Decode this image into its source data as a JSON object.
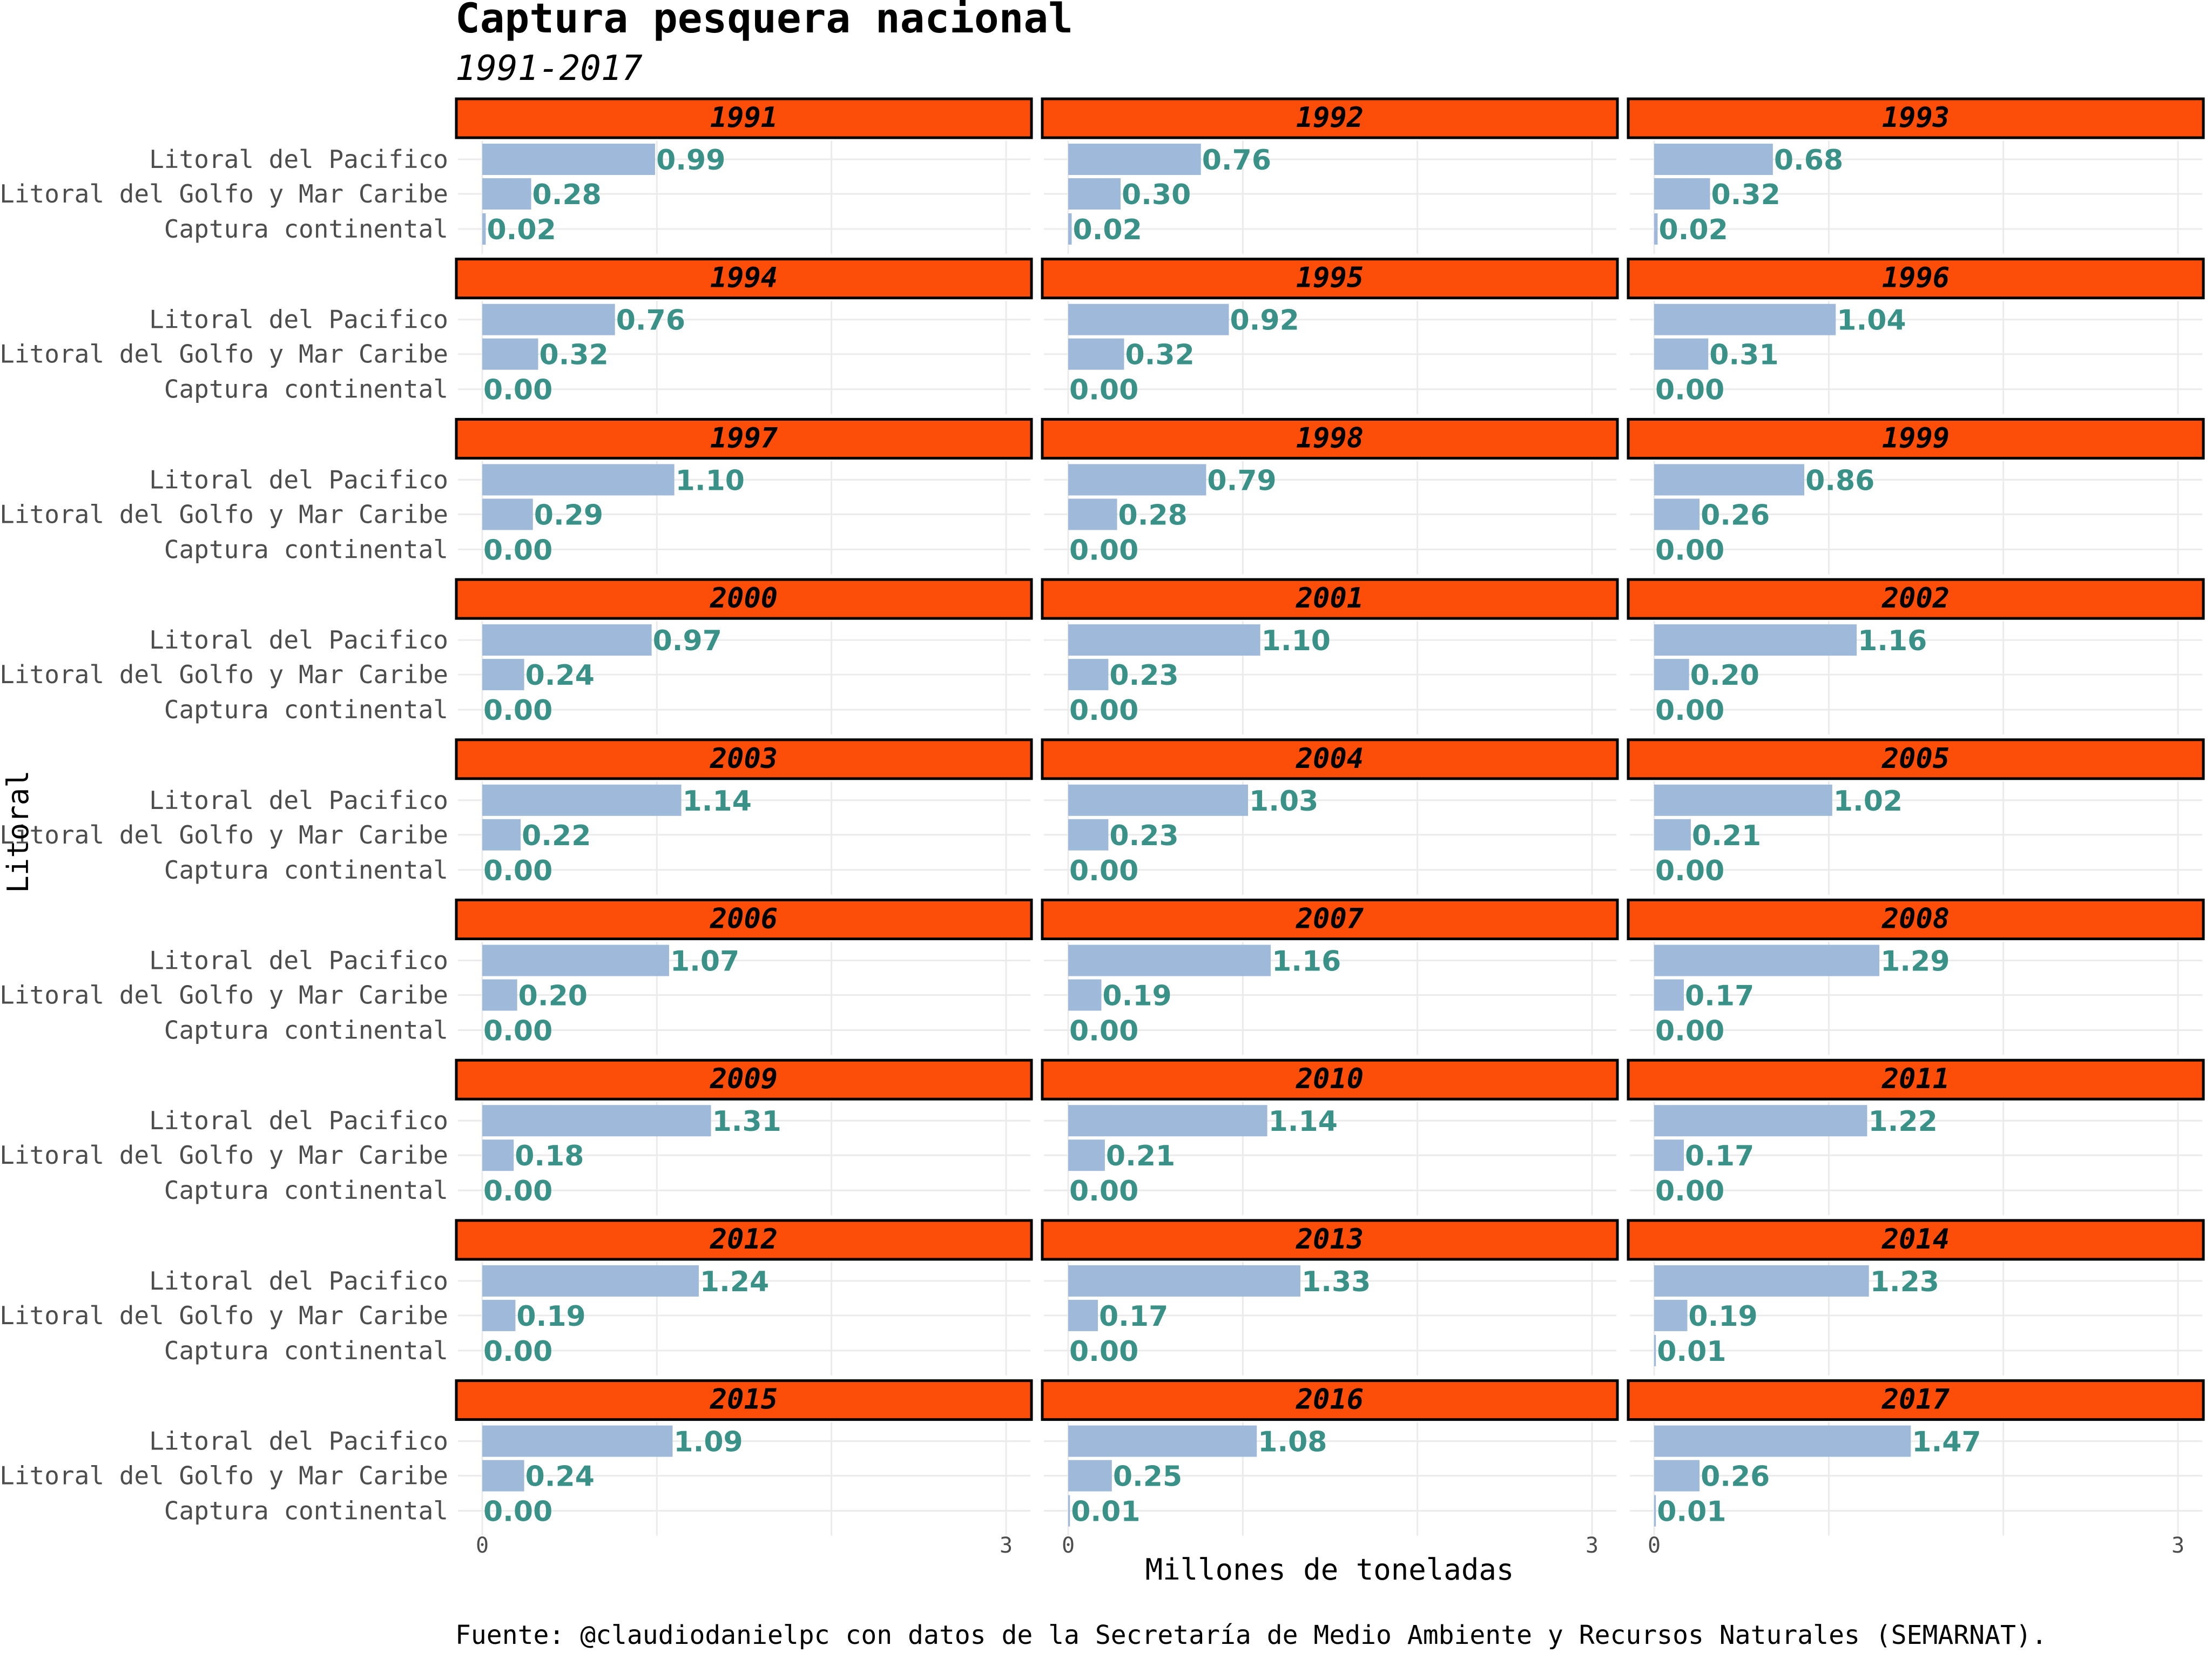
{
  "chart_data": {
    "type": "bar",
    "orientation": "horizontal",
    "title": "Captura pesquera nacional",
    "subtitle": "1991-2017",
    "xlabel": "Millones de toneladas",
    "ylabel": "Litoral",
    "caption": "Fuente: @claudiodanielpc con datos de la Secretaría de Medio Ambiente y Recursos Naturales (SEMARNAT).",
    "categories": [
      "Litoral del Pacifico",
      "Litoral del Golfo y Mar Caribe",
      "Captura continental"
    ],
    "xlim": [
      0,
      3
    ],
    "x_ticks": [
      "0",
      "3"
    ],
    "grid": true,
    "legend": "none",
    "colors": {
      "bar": "#9fb9db",
      "label": "#3a9188",
      "strip": "#fc4e08",
      "strip_border": "#000000"
    },
    "facets": [
      {
        "year": "1991",
        "values": [
          0.99,
          0.28,
          0.02
        ],
        "labels": [
          "0.99",
          "0.28",
          "0.02"
        ]
      },
      {
        "year": "1992",
        "values": [
          0.76,
          0.3,
          0.02
        ],
        "labels": [
          "0.76",
          "0.30",
          "0.02"
        ]
      },
      {
        "year": "1993",
        "values": [
          0.68,
          0.32,
          0.02
        ],
        "labels": [
          "0.68",
          "0.32",
          "0.02"
        ]
      },
      {
        "year": "1994",
        "values": [
          0.76,
          0.32,
          0.0
        ],
        "labels": [
          "0.76",
          "0.32",
          "0.00"
        ]
      },
      {
        "year": "1995",
        "values": [
          0.92,
          0.32,
          0.0
        ],
        "labels": [
          "0.92",
          "0.32",
          "0.00"
        ]
      },
      {
        "year": "1996",
        "values": [
          1.04,
          0.31,
          0.0
        ],
        "labels": [
          "1.04",
          "0.31",
          "0.00"
        ]
      },
      {
        "year": "1997",
        "values": [
          1.1,
          0.29,
          0.0
        ],
        "labels": [
          "1.10",
          "0.29",
          "0.00"
        ]
      },
      {
        "year": "1998",
        "values": [
          0.79,
          0.28,
          0.0
        ],
        "labels": [
          "0.79",
          "0.28",
          "0.00"
        ]
      },
      {
        "year": "1999",
        "values": [
          0.86,
          0.26,
          0.0
        ],
        "labels": [
          "0.86",
          "0.26",
          "0.00"
        ]
      },
      {
        "year": "2000",
        "values": [
          0.97,
          0.24,
          0.0
        ],
        "labels": [
          "0.97",
          "0.24",
          "0.00"
        ]
      },
      {
        "year": "2001",
        "values": [
          1.1,
          0.23,
          0.0
        ],
        "labels": [
          "1.10",
          "0.23",
          "0.00"
        ]
      },
      {
        "year": "2002",
        "values": [
          1.16,
          0.2,
          0.0
        ],
        "labels": [
          "1.16",
          "0.20",
          "0.00"
        ]
      },
      {
        "year": "2003",
        "values": [
          1.14,
          0.22,
          0.0
        ],
        "labels": [
          "1.14",
          "0.22",
          "0.00"
        ]
      },
      {
        "year": "2004",
        "values": [
          1.03,
          0.23,
          0.0
        ],
        "labels": [
          "1.03",
          "0.23",
          "0.00"
        ]
      },
      {
        "year": "2005",
        "values": [
          1.02,
          0.21,
          0.0
        ],
        "labels": [
          "1.02",
          "0.21",
          "0.00"
        ]
      },
      {
        "year": "2006",
        "values": [
          1.07,
          0.2,
          0.0
        ],
        "labels": [
          "1.07",
          "0.20",
          "0.00"
        ]
      },
      {
        "year": "2007",
        "values": [
          1.16,
          0.19,
          0.0
        ],
        "labels": [
          "1.16",
          "0.19",
          "0.00"
        ]
      },
      {
        "year": "2008",
        "values": [
          1.29,
          0.17,
          0.0
        ],
        "labels": [
          "1.29",
          "0.17",
          "0.00"
        ]
      },
      {
        "year": "2009",
        "values": [
          1.31,
          0.18,
          0.0
        ],
        "labels": [
          "1.31",
          "0.18",
          "0.00"
        ]
      },
      {
        "year": "2010",
        "values": [
          1.14,
          0.21,
          0.0
        ],
        "labels": [
          "1.14",
          "0.21",
          "0.00"
        ]
      },
      {
        "year": "2011",
        "values": [
          1.22,
          0.17,
          0.0
        ],
        "labels": [
          "1.22",
          "0.17",
          "0.00"
        ]
      },
      {
        "year": "2012",
        "values": [
          1.24,
          0.19,
          0.0
        ],
        "labels": [
          "1.24",
          "0.19",
          "0.00"
        ]
      },
      {
        "year": "2013",
        "values": [
          1.33,
          0.17,
          0.0
        ],
        "labels": [
          "1.33",
          "0.17",
          "0.00"
        ]
      },
      {
        "year": "2014",
        "values": [
          1.23,
          0.19,
          0.01
        ],
        "labels": [
          "1.23",
          "0.19",
          "0.01"
        ]
      },
      {
        "year": "2015",
        "values": [
          1.09,
          0.24,
          0.0
        ],
        "labels": [
          "1.09",
          "0.24",
          "0.00"
        ]
      },
      {
        "year": "2016",
        "values": [
          1.08,
          0.25,
          0.01
        ],
        "labels": [
          "1.08",
          "0.25",
          "0.01"
        ]
      },
      {
        "year": "2017",
        "values": [
          1.47,
          0.26,
          0.01
        ],
        "labels": [
          "1.47",
          "0.26",
          "0.01"
        ]
      }
    ]
  }
}
